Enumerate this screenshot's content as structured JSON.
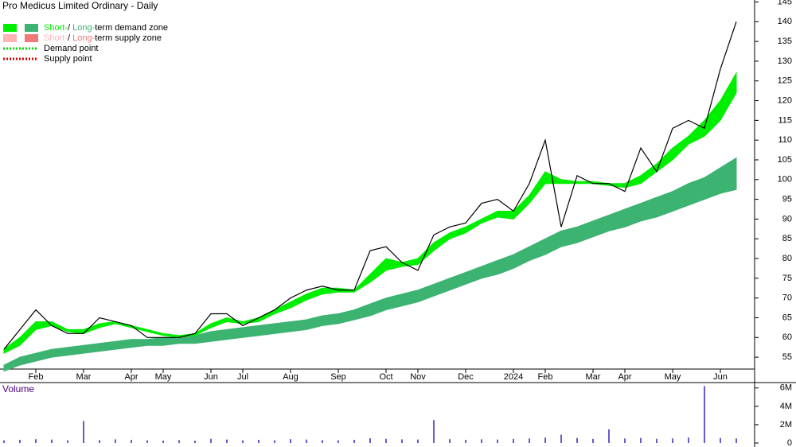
{
  "chart_data": [
    {
      "type": "line",
      "title": "Pro Medicus Limited Ordinary - Daily",
      "categories": [
        null,
        null,
        "Feb",
        null,
        null,
        "Mar",
        null,
        null,
        "Apr",
        null,
        "May",
        null,
        null,
        "Jun",
        null,
        "Jul",
        null,
        null,
        "Aug",
        null,
        null,
        "Sep",
        null,
        null,
        "Oct",
        null,
        "Nov",
        null,
        null,
        "Dec",
        null,
        null,
        "2024",
        null,
        "Feb",
        null,
        null,
        "Mar",
        null,
        "Apr",
        null,
        null,
        "May",
        null,
        null,
        "Jun",
        null
      ],
      "values": [
        57,
        62,
        67,
        63,
        61,
        61,
        65,
        64,
        63,
        60,
        60,
        60,
        61,
        66,
        66,
        63,
        65,
        67,
        70,
        72,
        73,
        72,
        72,
        82,
        83,
        79,
        77,
        86,
        88,
        89,
        94,
        95,
        92,
        99,
        110,
        88,
        101,
        99,
        99,
        97,
        108,
        102,
        113,
        115,
        113,
        128,
        140
      ],
      "color": "#000000",
      "short_zone": {
        "color": "#00ee00",
        "upper": [
          57,
          60,
          64,
          64,
          62,
          62,
          63.5,
          64,
          63,
          62,
          61,
          60.5,
          61,
          63.5,
          65,
          64,
          65,
          67,
          69,
          71,
          72.5,
          72.5,
          72,
          76,
          80,
          79,
          80,
          84,
          86.5,
          88,
          90,
          92,
          92,
          96,
          102,
          100,
          99.5,
          99.5,
          99,
          99,
          101,
          104,
          108,
          111,
          115,
          120,
          127
        ],
        "lower": [
          56,
          58,
          62,
          63,
          61.5,
          61,
          62.5,
          63.5,
          62.5,
          61.5,
          60.5,
          60,
          60.5,
          62.5,
          64,
          63.5,
          64,
          66,
          67.5,
          69.5,
          71,
          71.5,
          71.5,
          74,
          77,
          78,
          78.5,
          82,
          85,
          86.5,
          89,
          90.5,
          90,
          94,
          99,
          99,
          99,
          99,
          98.5,
          98,
          99,
          102,
          105,
          109,
          111,
          115,
          122
        ]
      },
      "long_zone": {
        "color": "#3cb371",
        "upper": [
          53,
          55,
          56,
          57,
          57.5,
          58,
          58.5,
          59,
          59.5,
          59.5,
          60,
          60,
          60.5,
          61.5,
          62,
          62.5,
          63,
          63.5,
          64,
          64.5,
          65.5,
          66,
          67,
          68.5,
          70,
          71,
          72,
          73.5,
          75,
          76.5,
          78,
          79.5,
          81,
          83,
          85,
          87,
          88,
          89.5,
          91,
          92.5,
          94,
          95.5,
          97,
          99,
          100.5,
          103,
          105.5
        ],
        "lower": [
          51.5,
          53,
          54,
          55,
          55.5,
          56,
          56.5,
          57,
          57.5,
          58,
          58,
          58.5,
          58.5,
          59,
          59.5,
          60,
          60.5,
          61,
          61.5,
          62,
          63,
          63.5,
          64.5,
          65.5,
          67,
          68,
          69,
          70.5,
          72,
          73.5,
          75,
          76,
          77.5,
          79.5,
          81,
          83,
          84,
          85.5,
          87,
          88,
          89.5,
          90.5,
          92,
          93.5,
          95,
          96.5,
          97.5
        ]
      },
      "ylim": [
        52,
        145.5
      ],
      "yticks": [
        55,
        60,
        65,
        70,
        75,
        80,
        85,
        90,
        95,
        100,
        105,
        110,
        115,
        120,
        125,
        130,
        135,
        140,
        145
      ],
      "legend": [
        {
          "parts": [
            "Short-",
            "/ ",
            "Long-",
            "term demand zone"
          ],
          "colors": [
            "#00ee00",
            "#3cb371"
          ]
        },
        {
          "parts": [
            "Short-",
            "/ ",
            "Long-",
            "term supply zone"
          ],
          "colors": [
            "#ffb3b3",
            "#f07878"
          ]
        },
        {
          "parts": [
            "Demand point"
          ],
          "colors": [
            "#00dd00"
          ]
        },
        {
          "parts": [
            "Supply point"
          ],
          "colors": [
            "#dd0000"
          ]
        }
      ]
    },
    {
      "type": "bar",
      "title": "Volume",
      "color": "#6a5acd",
      "values": [
        300000,
        350000,
        420000,
        380000,
        300000,
        2400000,
        320000,
        400000,
        350000,
        300000,
        280000,
        320000,
        260000,
        450000,
        380000,
        300000,
        350000,
        300000,
        420000,
        380000,
        320000,
        300000,
        350000,
        520000,
        450000,
        400000,
        380000,
        2500000,
        420000,
        350000,
        400000,
        380000,
        450000,
        500000,
        600000,
        900000,
        550000,
        450000,
        1500000,
        500000,
        550000,
        450000,
        500000,
        600000,
        6200000,
        550000,
        500000
      ],
      "ylim": [
        0,
        6500000
      ],
      "yticks": [
        0,
        {
          "value": 2000000,
          "label": "2M"
        },
        {
          "value": 4000000,
          "label": "4M"
        },
        {
          "value": 6000000,
          "label": "6M"
        }
      ]
    }
  ]
}
